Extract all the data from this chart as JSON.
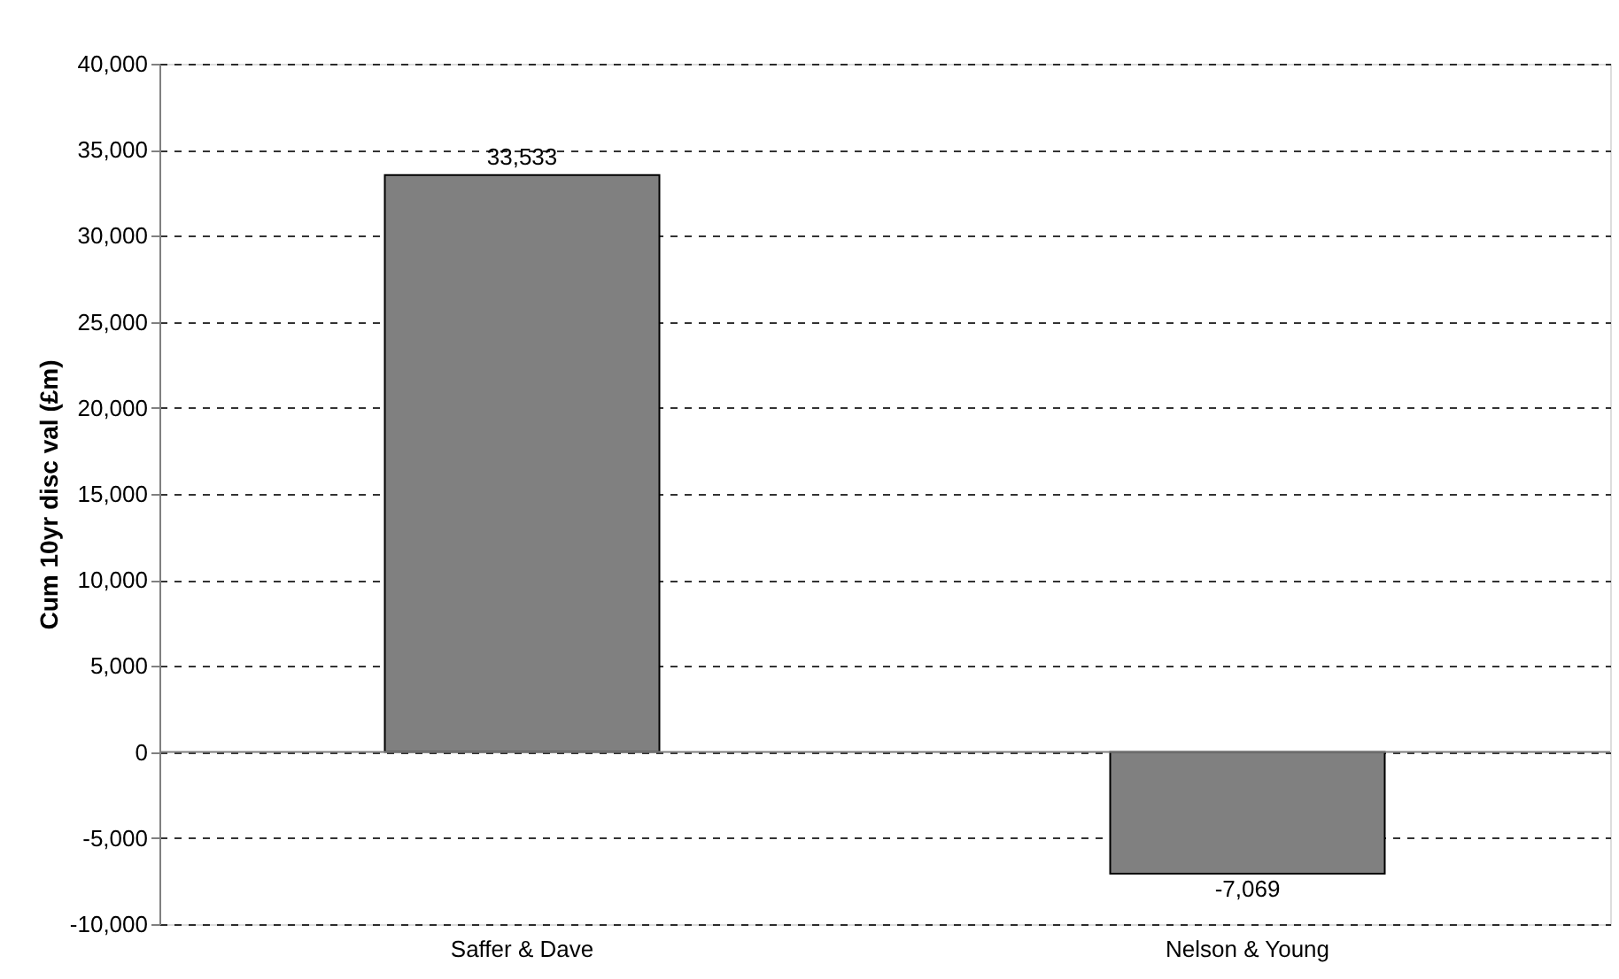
{
  "chart_data": {
    "type": "bar",
    "ylabel": "Cum 10yr disc val (£m)",
    "categories": [
      "Saffer & Dave",
      "Nelson & Young"
    ],
    "values": [
      33533,
      -7069
    ],
    "color": "#808080",
    "ylim": [
      -10000,
      40000
    ],
    "yticks": [
      {
        "value": -10000,
        "label": "-10,000"
      },
      {
        "value": -5000,
        "label": "-5,000"
      },
      {
        "value": 0,
        "label": "0"
      },
      {
        "value": 5000,
        "label": "5,000"
      },
      {
        "value": 10000,
        "label": "10,000"
      },
      {
        "value": 15000,
        "label": "15,000"
      },
      {
        "value": 20000,
        "label": "20,000"
      },
      {
        "value": 25000,
        "label": "25,000"
      },
      {
        "value": 30000,
        "label": "30,000"
      },
      {
        "value": 35000,
        "label": "35,000"
      },
      {
        "value": 40000,
        "label": "40,000"
      }
    ],
    "grid": "y",
    "value_labels": [
      "33,533",
      "-7,069"
    ]
  }
}
